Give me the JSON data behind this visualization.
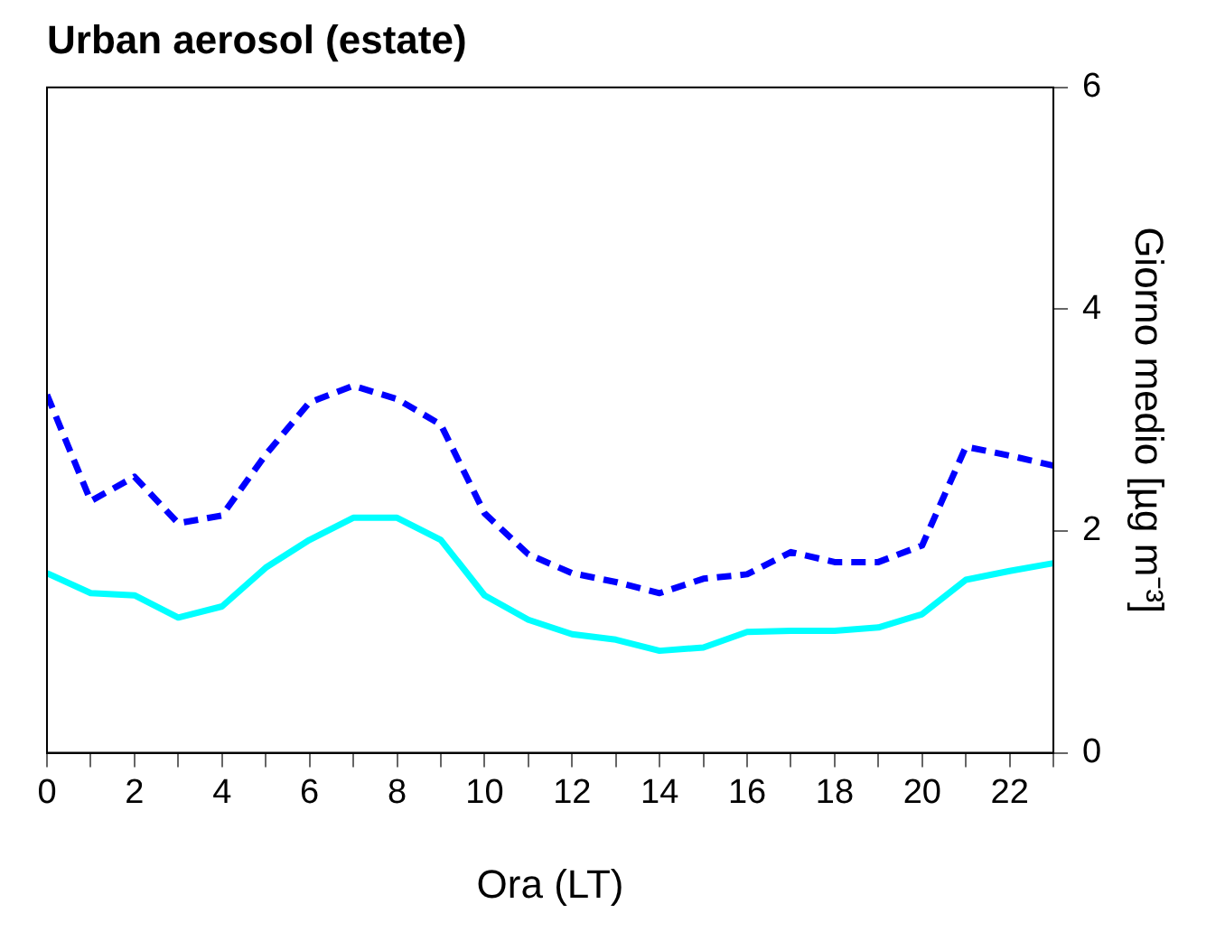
{
  "chart_data": {
    "type": "line",
    "title": "Urban aerosol (estate)",
    "xlabel": "Ora (LT)",
    "ylabel": "Giorno medio [µg m⁻³]",
    "x": [
      0,
      1,
      2,
      3,
      4,
      5,
      6,
      7,
      8,
      9,
      10,
      11,
      12,
      13,
      14,
      15,
      16,
      17,
      18,
      19,
      20,
      21,
      22,
      23
    ],
    "series": [
      {
        "color": "#0000ff",
        "line_style": "dashed",
        "values": [
          3.23,
          2.27,
          2.49,
          2.07,
          2.14,
          2.69,
          3.16,
          3.31,
          3.19,
          2.96,
          2.16,
          1.79,
          1.62,
          1.54,
          1.44,
          1.57,
          1.61,
          1.81,
          1.72,
          1.72,
          1.87,
          2.76,
          2.68,
          2.59
        ]
      },
      {
        "color": "#00ffff",
        "line_style": "solid",
        "values": [
          1.62,
          1.44,
          1.42,
          1.22,
          1.32,
          1.67,
          1.92,
          2.12,
          2.12,
          1.92,
          1.42,
          1.2,
          1.07,
          1.02,
          0.92,
          0.95,
          1.09,
          1.1,
          1.1,
          1.13,
          1.25,
          1.56,
          1.64,
          1.71
        ]
      }
    ],
    "xlim": [
      0,
      23
    ],
    "xticks": [
      0,
      {
        "value": 1,
        "label": null
      },
      2,
      {
        "value": 3,
        "label": null
      },
      4,
      {
        "value": 5,
        "label": null
      },
      6,
      {
        "value": 7,
        "label": null
      },
      8,
      {
        "value": 9,
        "label": null
      },
      10,
      {
        "value": 11,
        "label": null
      },
      12,
      {
        "value": 13,
        "label": null
      },
      14,
      {
        "value": 15,
        "label": null
      },
      16,
      {
        "value": 17,
        "label": null
      },
      18,
      {
        "value": 19,
        "label": null
      },
      20,
      {
        "value": 21,
        "label": null
      },
      22,
      {
        "value": 23,
        "label": null
      }
    ],
    "ylim": [
      0,
      6
    ],
    "yticks": [
      0,
      2,
      4,
      6
    ],
    "grid": false,
    "legend": false,
    "marker": "none"
  }
}
